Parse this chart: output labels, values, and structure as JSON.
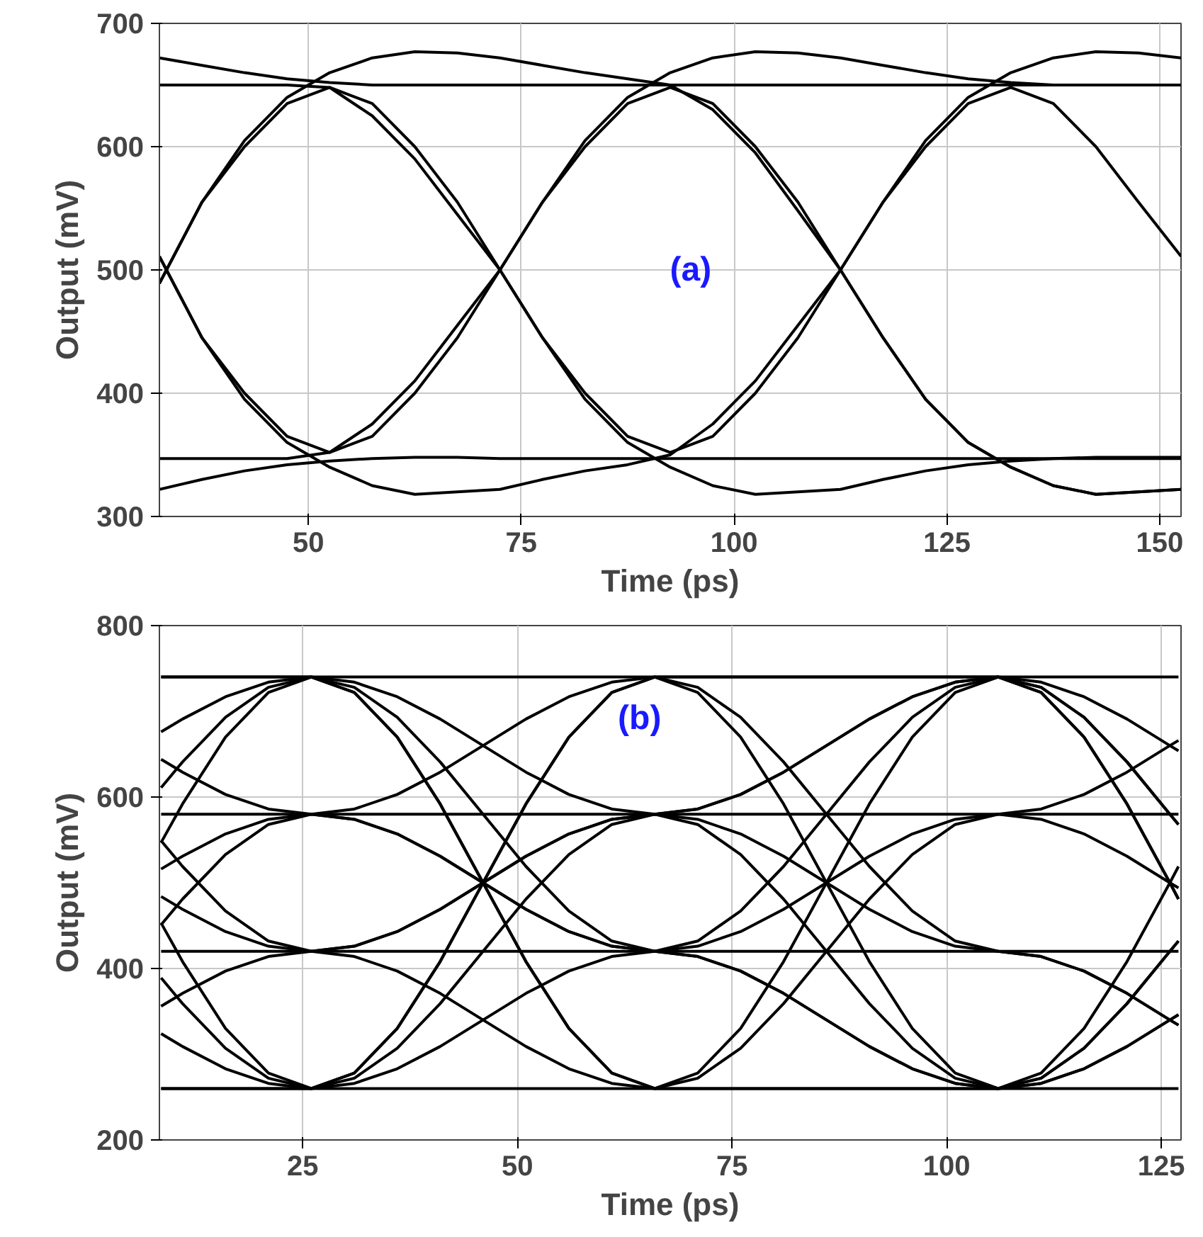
{
  "chart_data": [
    {
      "type": "line",
      "xlabel": "Time (ps)",
      "ylabel": "Output (mV)",
      "annotations": [
        "(a)"
      ],
      "xlim": [
        32.5,
        152.5
      ],
      "ylim": [
        300,
        700
      ],
      "xticks": [
        50,
        75,
        100,
        125,
        150
      ],
      "yticks": [
        300,
        400,
        500,
        600,
        700
      ],
      "grid": true,
      "line_style": "solid",
      "x": [
        32.5,
        37.5,
        42.5,
        47.5,
        52.5,
        57.5,
        62.5,
        67.5,
        72.5,
        77.5,
        82.5,
        87.5,
        92.5,
        97.5,
        102.5,
        107.5,
        112.5,
        117.5,
        122.5,
        127.5,
        132.5,
        137.5,
        142.5,
        147.5,
        152.5
      ],
      "series": [
        {
          "color": "#000000",
          "values": [
            489,
            555,
            605,
            640,
            660,
            672,
            677,
            676,
            672,
            666,
            660,
            655,
            650,
            630,
            595,
            548,
            500,
            445,
            395,
            360,
            340,
            325,
            318,
            320,
            322
          ]
        },
        {
          "color": "#000000",
          "values": [
            511,
            445,
            395,
            360,
            340,
            325,
            318,
            320,
            322,
            330,
            337,
            342,
            350,
            375,
            410,
            455,
            500,
            555,
            605,
            640,
            660,
            672,
            677,
            676,
            672
          ]
        },
        {
          "color": "#000000",
          "values": [
            489,
            555,
            600,
            635,
            648,
            635,
            600,
            555,
            500,
            445,
            400,
            365,
            352,
            365,
            400,
            445,
            500,
            555,
            600,
            635,
            648,
            635,
            600,
            555,
            511
          ]
        },
        {
          "color": "#000000",
          "values": [
            511,
            445,
            400,
            365,
            352,
            365,
            400,
            445,
            500,
            555,
            600,
            635,
            648,
            635,
            600,
            555,
            500,
            445,
            395,
            360,
            340,
            325,
            318,
            320,
            322
          ]
        },
        {
          "color": "#000000",
          "values": [
            672,
            666,
            660,
            655,
            652,
            650,
            650,
            650,
            650,
            650,
            650,
            650,
            650,
            650,
            650,
            650,
            650,
            650,
            650,
            650,
            650,
            650,
            650,
            650,
            650
          ]
        },
        {
          "color": "#000000",
          "values": [
            322,
            330,
            337,
            342,
            345,
            347,
            348,
            348,
            347,
            347,
            347,
            347,
            347,
            347,
            347,
            347,
            347,
            347,
            347,
            347,
            347,
            347,
            347,
            347,
            347
          ]
        },
        {
          "color": "#000000",
          "values": [
            650,
            650,
            650,
            650,
            648,
            625,
            590,
            545,
            500,
            445,
            395,
            360,
            340,
            325,
            318,
            320,
            322,
            330,
            337,
            342,
            345,
            347,
            348,
            348,
            348
          ]
        },
        {
          "color": "#000000",
          "values": [
            347,
            347,
            347,
            347,
            352,
            375,
            410,
            455,
            500,
            555,
            605,
            640,
            660,
            672,
            677,
            676,
            672,
            666,
            660,
            655,
            652,
            650,
            650,
            650,
            650
          ]
        }
      ]
    },
    {
      "type": "line",
      "xlabel": "Time (ps)",
      "ylabel": "Output (mV)",
      "annotations": [
        "(b)"
      ],
      "xlim": [
        8.3,
        127.3
      ],
      "ylim": [
        200,
        800
      ],
      "xticks": [
        25,
        50,
        75,
        100,
        125
      ],
      "yticks": [
        200,
        400,
        600,
        800
      ],
      "grid": true,
      "line_style": "solid",
      "x": [
        8.5,
        11,
        16,
        21,
        26,
        31,
        36,
        41,
        46,
        51,
        56,
        61,
        66,
        71,
        76,
        81,
        86,
        91,
        96,
        101,
        106,
        111,
        116,
        121,
        126,
        127
      ],
      "series": [
        {
          "color": "#000000",
          "values": [
            547,
            592,
            670,
            722,
            740,
            722,
            670,
            592,
            500,
            408,
            330,
            278,
            260,
            278,
            330,
            408,
            500,
            592,
            670,
            722,
            740,
            722,
            670,
            592,
            500,
            481
          ]
        },
        {
          "color": "#000000",
          "values": [
            453,
            408,
            330,
            278,
            260,
            278,
            330,
            408,
            500,
            592,
            670,
            722,
            740,
            722,
            670,
            592,
            500,
            408,
            330,
            278,
            260,
            266,
            283,
            309,
            340,
            346
          ]
        },
        {
          "color": "#000000",
          "values": [
            516,
            531,
            557,
            574,
            580,
            574,
            557,
            531,
            500,
            469,
            443,
            426,
            420,
            426,
            443,
            469,
            500,
            531,
            557,
            574,
            580,
            574,
            557,
            531,
            500,
            494
          ]
        },
        {
          "color": "#000000",
          "values": [
            484,
            469,
            443,
            426,
            420,
            426,
            443,
            469,
            500,
            531,
            557,
            574,
            580,
            574,
            557,
            531,
            500,
            469,
            443,
            426,
            420,
            414,
            397,
            371,
            340,
            334
          ]
        },
        {
          "color": "#000000",
          "values": [
            356,
            371,
            397,
            414,
            420,
            426,
            443,
            469,
            500,
            531,
            557,
            574,
            580,
            586,
            603,
            629,
            660,
            691,
            717,
            734,
            740,
            734,
            717,
            691,
            660,
            654
          ]
        },
        {
          "color": "#000000",
          "values": [
            644,
            629,
            603,
            586,
            580,
            574,
            557,
            531,
            500,
            469,
            443,
            426,
            420,
            414,
            397,
            371,
            340,
            309,
            283,
            266,
            260,
            266,
            283,
            309,
            340,
            346
          ]
        },
        {
          "color": "#000000",
          "values": [
            611,
            641,
            693,
            728,
            740,
            734,
            717,
            691,
            660,
            629,
            603,
            586,
            580,
            568,
            533,
            481,
            420,
            359,
            307,
            272,
            260,
            272,
            307,
            359,
            420,
            432
          ]
        },
        {
          "color": "#000000",
          "values": [
            389,
            359,
            307,
            272,
            260,
            266,
            283,
            309,
            340,
            371,
            397,
            414,
            420,
            432,
            467,
            519,
            580,
            641,
            693,
            728,
            740,
            728,
            693,
            641,
            580,
            568
          ]
        },
        {
          "color": "#000000",
          "values": [
            451,
            481,
            533,
            568,
            580,
            586,
            603,
            629,
            660,
            691,
            717,
            734,
            740,
            728,
            693,
            641,
            580,
            519,
            467,
            432,
            420,
            414,
            397,
            371,
            340,
            334
          ]
        },
        {
          "color": "#000000",
          "values": [
            549,
            519,
            467,
            432,
            420,
            414,
            397,
            371,
            340,
            309,
            283,
            266,
            260,
            272,
            307,
            359,
            420,
            481,
            533,
            568,
            580,
            586,
            603,
            629,
            660,
            666
          ]
        },
        {
          "color": "#000000",
          "values": [
            260,
            260,
            260,
            260,
            260,
            278,
            330,
            408,
            500,
            592,
            670,
            722,
            740,
            740,
            740,
            740,
            740,
            740,
            740,
            740,
            740,
            728,
            693,
            641,
            580,
            568
          ]
        },
        {
          "color": "#000000",
          "values": [
            740,
            740,
            740,
            740,
            740,
            722,
            670,
            592,
            500,
            408,
            330,
            278,
            260,
            260,
            260,
            260,
            260,
            260,
            260,
            260,
            260,
            272,
            307,
            359,
            420,
            432
          ]
        },
        {
          "color": "#000000",
          "values": [
            676,
            691,
            717,
            734,
            740,
            728,
            693,
            641,
            580,
            519,
            467,
            432,
            420,
            414,
            397,
            371,
            340,
            309,
            283,
            266,
            260,
            278,
            330,
            408,
            500,
            519
          ]
        },
        {
          "color": "#000000",
          "values": [
            324,
            309,
            283,
            266,
            260,
            272,
            307,
            359,
            420,
            481,
            533,
            568,
            580,
            586,
            603,
            629,
            660,
            691,
            717,
            734,
            740,
            722,
            670,
            592,
            500,
            481
          ]
        },
        {
          "color": "#000000",
          "values": [
            260,
            260,
            260,
            260,
            260,
            260,
            260,
            260,
            260,
            260,
            260,
            260,
            260,
            260,
            260,
            260,
            260,
            260,
            260,
            260,
            260,
            260,
            260,
            260,
            260,
            260
          ]
        },
        {
          "color": "#000000",
          "values": [
            740,
            740,
            740,
            740,
            740,
            740,
            740,
            740,
            740,
            740,
            740,
            740,
            740,
            740,
            740,
            740,
            740,
            740,
            740,
            740,
            740,
            740,
            740,
            740,
            740,
            740
          ]
        },
        {
          "color": "#000000",
          "values": [
            420,
            420,
            420,
            420,
            420,
            420,
            420,
            420,
            420,
            420,
            420,
            420,
            420,
            420,
            420,
            420,
            420,
            420,
            420,
            420,
            420,
            420,
            420,
            420,
            420,
            420
          ]
        },
        {
          "color": "#000000",
          "values": [
            580,
            580,
            580,
            580,
            580,
            580,
            580,
            580,
            580,
            580,
            580,
            580,
            580,
            580,
            580,
            580,
            580,
            580,
            580,
            580,
            580,
            580,
            580,
            580,
            580,
            580
          ]
        }
      ]
    }
  ]
}
